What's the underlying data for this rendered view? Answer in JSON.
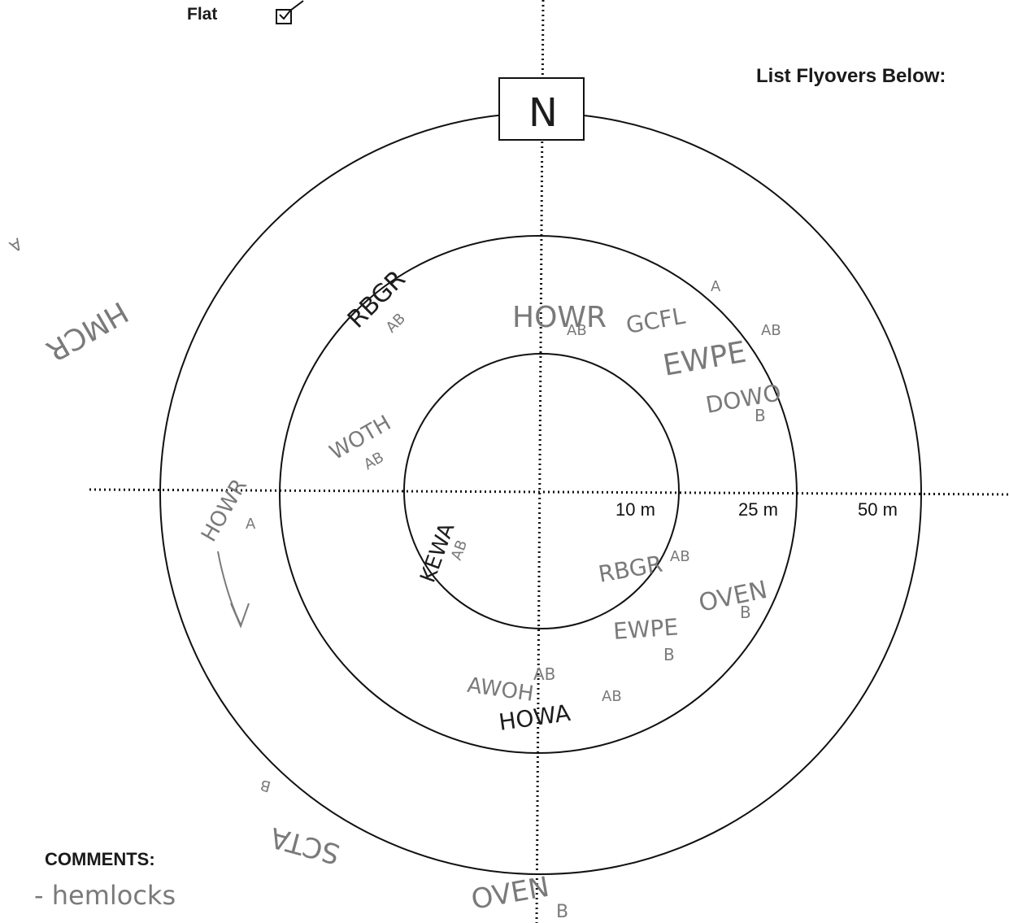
{
  "form": {
    "flat_label": "Flat",
    "flat_checked": true,
    "flyovers_title": "List Flyovers Below:",
    "comments_label": "COMMENTS:",
    "comments_text": "- hemlocks",
    "north_label": "N"
  },
  "rings": [
    "10 m",
    "25 m",
    "50 m"
  ],
  "handwritten_entries": [
    {
      "code": "RBGR",
      "status": "AB"
    },
    {
      "code": "HOWR",
      "status": "AB"
    },
    {
      "code": "GCFL",
      "status": "A"
    },
    {
      "code": "EWPE",
      "status": "AB"
    },
    {
      "code": "DOWO",
      "status": "B"
    },
    {
      "code": "WOTH",
      "status": "AB"
    },
    {
      "code": "HOWR",
      "status": "A"
    },
    {
      "code": "KEWA",
      "status": "AB"
    },
    {
      "code": "RBGR",
      "status": "AB"
    },
    {
      "code": "OVEN",
      "status": "B"
    },
    {
      "code": "EWPE",
      "status": "B"
    },
    {
      "code": "HOWA",
      "status": "AB"
    },
    {
      "code": "HOWA",
      "status": "AB"
    },
    {
      "code": "HMCR",
      "status": "A"
    },
    {
      "code": "SCTA",
      "status": "B"
    },
    {
      "code": "OVEN",
      "status": "B"
    }
  ],
  "colors": {
    "ink": "#1a1a1a",
    "pencil": "#7a7a7a"
  }
}
